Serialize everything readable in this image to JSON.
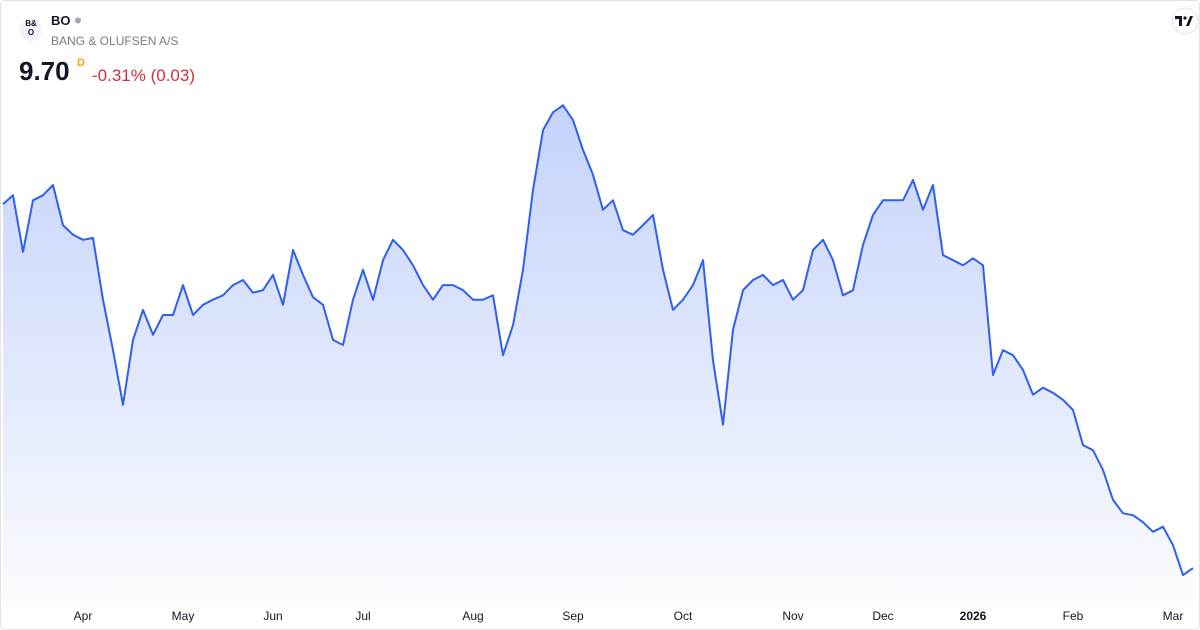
{
  "chart_data": {
    "type": "area",
    "title": "BO",
    "subtitle": "BANG & OLUFSEN A/S",
    "price": "9.70",
    "interval": "D",
    "change": "-0.31% (0.03)",
    "color": "#2f5ff0",
    "ylim": [
      9.2,
      17.2
    ],
    "categories": [
      null,
      null,
      null,
      null,
      null,
      null,
      null,
      null,
      "Apr",
      null,
      null,
      null,
      null,
      null,
      null,
      null,
      null,
      null,
      "May",
      null,
      null,
      null,
      null,
      null,
      null,
      null,
      null,
      "Jun",
      null,
      null,
      null,
      null,
      null,
      null,
      null,
      null,
      "Jul",
      null,
      null,
      null,
      null,
      null,
      null,
      null,
      null,
      null,
      null,
      "Aug",
      null,
      null,
      null,
      null,
      null,
      null,
      null,
      null,
      null,
      "Sep",
      null,
      null,
      null,
      null,
      null,
      null,
      null,
      null,
      null,
      null,
      "Oct",
      null,
      null,
      null,
      null,
      null,
      null,
      null,
      null,
      null,
      null,
      "Nov",
      null,
      null,
      null,
      null,
      null,
      null,
      null,
      null,
      "Dec",
      null,
      null,
      null,
      null,
      null,
      null,
      null,
      null,
      "2026",
      null,
      null,
      null,
      null,
      null,
      null,
      null,
      null,
      null,
      "Feb",
      null,
      null,
      null,
      null,
      null,
      null,
      null,
      null,
      null,
      "Mar",
      null,
      null
    ],
    "values": [
      15.41,
      15.55,
      14.66,
      15.47,
      15.55,
      15.71,
      15.08,
      14.93,
      14.85,
      14.88,
      13.91,
      13.12,
      12.26,
      13.28,
      13.75,
      13.36,
      13.67,
      13.67,
      14.14,
      13.67,
      13.83,
      13.91,
      13.98,
      14.14,
      14.22,
      14.02,
      14.06,
      14.3,
      13.83,
      14.69,
      14.3,
      13.95,
      13.83,
      13.28,
      13.2,
      13.91,
      14.38,
      13.91,
      14.53,
      14.85,
      14.69,
      14.45,
      14.14,
      13.91,
      14.14,
      14.14,
      14.06,
      13.91,
      13.91,
      13.98,
      13.04,
      13.51,
      14.38,
      15.63,
      16.57,
      16.85,
      16.96,
      16.73,
      16.26,
      15.87,
      15.32,
      15.47,
      15.0,
      14.93,
      15.08,
      15.24,
      14.38,
      13.75,
      13.91,
      14.14,
      14.53,
      12.96,
      11.95,
      13.44,
      14.06,
      14.22,
      14.3,
      14.14,
      14.22,
      13.91,
      14.06,
      14.69,
      14.85,
      14.53,
      13.98,
      14.06,
      14.77,
      15.24,
      15.47,
      15.47,
      15.47,
      15.79,
      15.32,
      15.71,
      14.61,
      14.53,
      14.45,
      14.56,
      14.45,
      12.73,
      13.12,
      13.04,
      12.81,
      12.42,
      12.53,
      12.45,
      12.34,
      12.18,
      11.63,
      11.55,
      11.24,
      10.77,
      10.56,
      10.53,
      10.42,
      10.27,
      10.35,
      10.06,
      9.59,
      9.7
    ]
  }
}
